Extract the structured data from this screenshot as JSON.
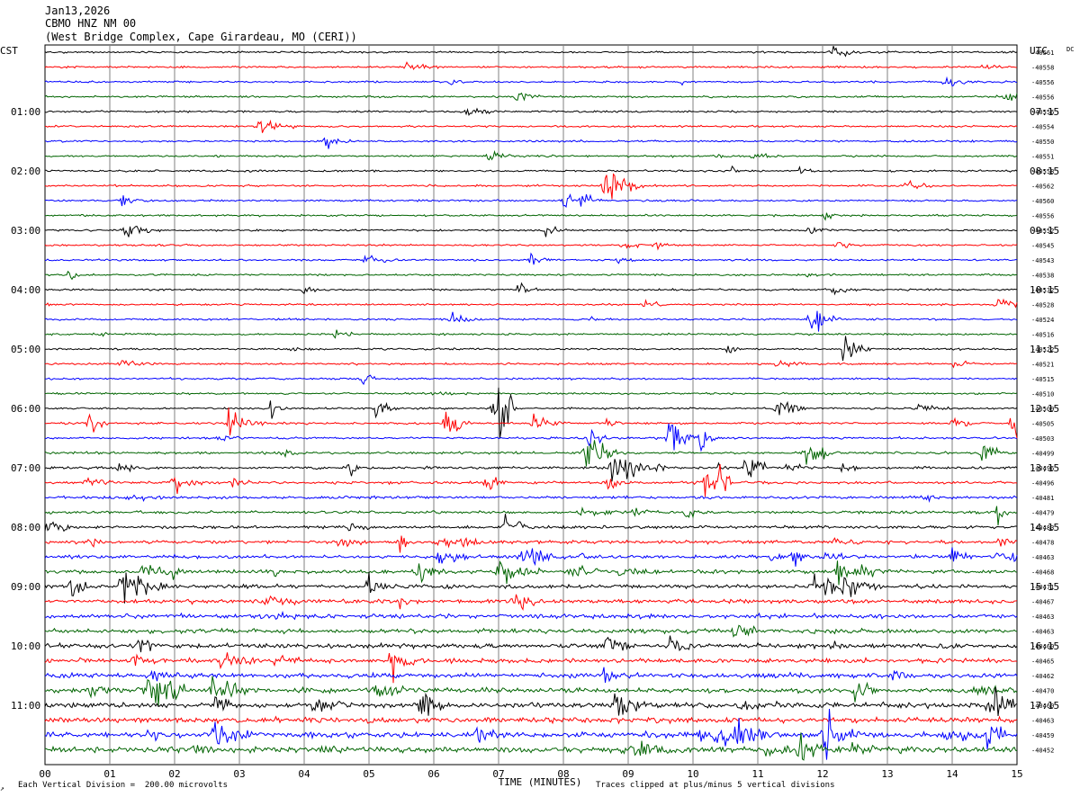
{
  "header": {
    "date": "Jan13,2026",
    "station": "CBMO HNZ NM 00",
    "location": "(West Bridge Complex, Cape Girardeau, MO (CERI))"
  },
  "footer": {
    "division_note": "Each Vertical Division =  200.00 microvolts",
    "clip_note": "Traces clipped at plus/minus 5 vertical divisions",
    "corner_mark": "↗"
  },
  "colors": {
    "background": "#ffffff",
    "grid": "#808080",
    "trace_cycle": [
      "#000000",
      "#ff0000",
      "#0000ff",
      "#006400"
    ]
  },
  "chart_data": {
    "type": "line",
    "kind": "seismogram helicorder",
    "xlabel": "TIME (MINUTES)",
    "x_ticks": [
      "00",
      "01",
      "02",
      "03",
      "04",
      "05",
      "06",
      "07",
      "08",
      "09",
      "10",
      "11",
      "12",
      "13",
      "14",
      "15"
    ],
    "xlim": [
      0,
      15
    ],
    "left_axis_title": "CST",
    "right_axis_title": "UTC",
    "dc_label": "DC",
    "rows_per_hour": 4,
    "left_labels": [
      "01:00",
      "02:00",
      "03:00",
      "04:00",
      "05:00",
      "06:00",
      "07:00",
      "08:00",
      "09:00",
      "10:00",
      "11:00"
    ],
    "right_labels": [
      "07:15",
      "08:15",
      "09:15",
      "10:15",
      "11:15",
      "12:15",
      "13:15",
      "14:15",
      "15:15",
      "16:15",
      "17:15"
    ],
    "dc_offsets": [
      -40561,
      -40558,
      -40556,
      -40556,
      -40556,
      -40554,
      -40550,
      -40551,
      -40558,
      -40562,
      -40560,
      -40556,
      -40552,
      -40545,
      -40543,
      -40538,
      -40532,
      -40528,
      -40524,
      -40516,
      -40522,
      -40521,
      -40515,
      -40510,
      -40509,
      -40505,
      -40503,
      -40499,
      -40496,
      -40496,
      -40481,
      -40479,
      -40483,
      -40478,
      -40463,
      -40468,
      -40471,
      -40467,
      -40463,
      -40463,
      -40460,
      -40465,
      -40462,
      -40470,
      -40460,
      -40463,
      -40459,
      -40452
    ]
  }
}
